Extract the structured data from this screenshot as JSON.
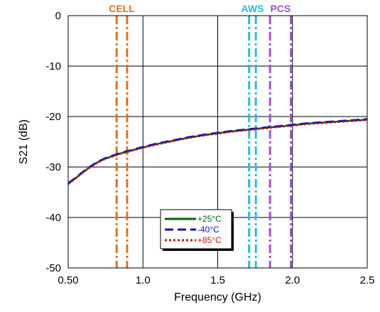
{
  "chart_data": {
    "type": "line",
    "xlabel": "Frequency (GHz)",
    "ylabel": "S21 (dB)",
    "xlim": [
      0.5,
      2.5
    ],
    "ylim": [
      -50,
      0
    ],
    "x_ticks": [
      0.5,
      1.0,
      1.5,
      2.0,
      2.5
    ],
    "x_tick_labels": [
      "0.50",
      "1.0",
      "1.5",
      "2.0",
      "2.5"
    ],
    "y_ticks": [
      0,
      -10,
      -20,
      -30,
      -40,
      -50
    ],
    "y_tick_labels": [
      "0",
      "-10",
      "-20",
      "-30",
      "-40",
      "-50"
    ],
    "grid": true,
    "legend_position": "bottom-center",
    "x": [
      0.5,
      0.55,
      0.6,
      0.65,
      0.7,
      0.75,
      0.8,
      0.85,
      0.9,
      0.95,
      1.0,
      1.1,
      1.2,
      1.3,
      1.4,
      1.5,
      1.6,
      1.7,
      1.8,
      1.9,
      2.0,
      2.1,
      2.2,
      2.3,
      2.4,
      2.5
    ],
    "series": [
      {
        "name": "+25°C",
        "color": "#006400",
        "style": "solid",
        "values": [
          -33.3,
          -32.2,
          -31.0,
          -29.9,
          -29.0,
          -28.3,
          -27.8,
          -27.3,
          -26.9,
          -26.5,
          -26.1,
          -25.4,
          -24.8,
          -24.2,
          -23.7,
          -23.3,
          -22.9,
          -22.6,
          -22.3,
          -22.0,
          -21.7,
          -21.4,
          -21.2,
          -21.0,
          -20.8,
          -20.6
        ]
      },
      {
        "name": "-40°C",
        "color": "#1010cc",
        "style": "dashed",
        "values": [
          -33.2,
          -32.1,
          -30.9,
          -29.8,
          -28.9,
          -28.2,
          -27.7,
          -27.2,
          -26.8,
          -26.4,
          -26.0,
          -25.3,
          -24.7,
          -24.1,
          -23.6,
          -23.2,
          -22.8,
          -22.5,
          -22.2,
          -21.9,
          -21.6,
          -21.3,
          -21.1,
          -20.9,
          -20.7,
          -20.5
        ]
      },
      {
        "name": "+85°C",
        "color": "#cc1010",
        "style": "dotted",
        "values": [
          -33.4,
          -32.3,
          -31.1,
          -30.0,
          -29.1,
          -28.4,
          -27.9,
          -27.4,
          -27.0,
          -26.6,
          -26.2,
          -25.5,
          -24.9,
          -24.3,
          -23.8,
          -23.4,
          -23.0,
          -22.7,
          -22.4,
          -22.1,
          -21.8,
          -21.5,
          -21.3,
          -21.1,
          -20.9,
          -20.7
        ]
      }
    ],
    "bands": [
      {
        "label": "CELL",
        "color": "#e07020",
        "x_values": [
          0.824,
          0.894
        ]
      },
      {
        "label": "AWS",
        "color": "#20c0e0",
        "x_values": [
          1.71,
          1.755
        ]
      },
      {
        "label": "PCS",
        "color": "#a050d0",
        "x_values": [
          1.85,
          1.99
        ]
      }
    ]
  }
}
